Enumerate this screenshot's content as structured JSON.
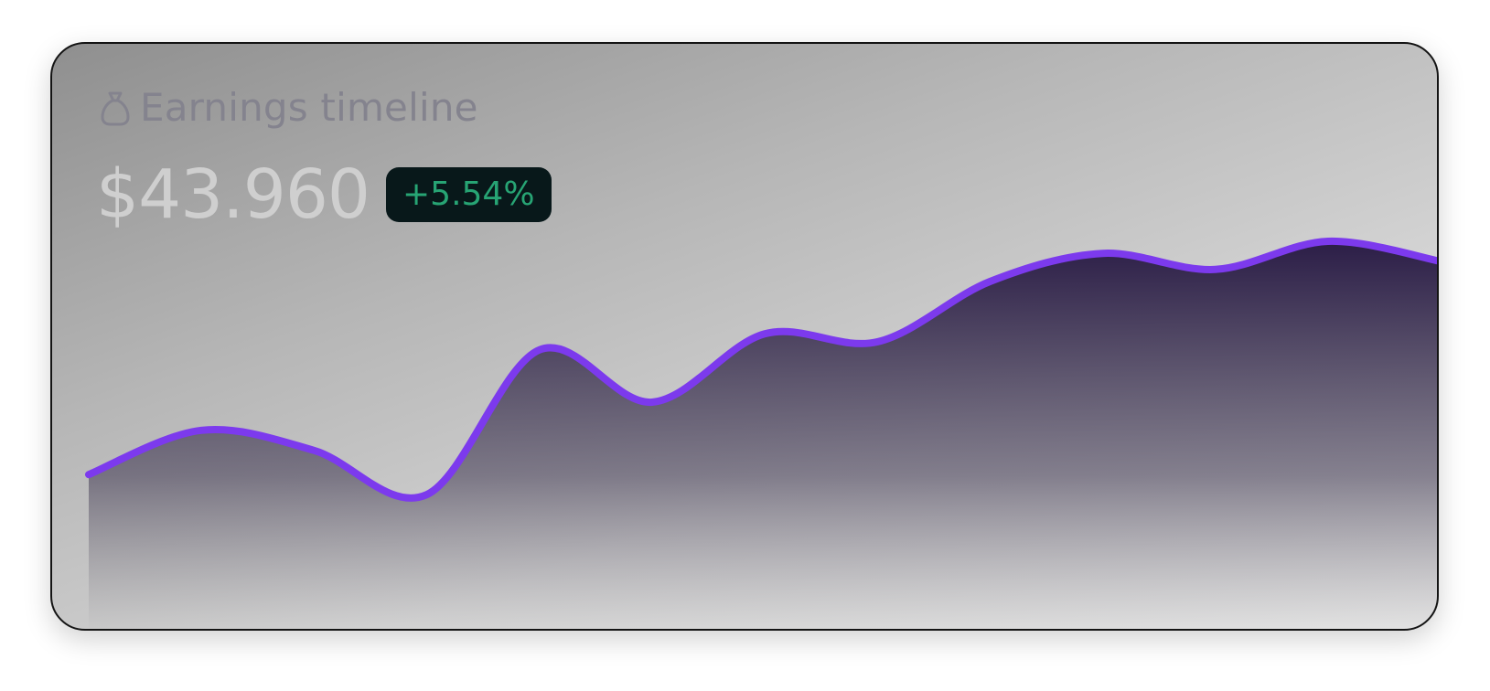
{
  "card": {
    "title": "Earnings timeline",
    "icon": "money-bag-icon",
    "amount": "$43.960",
    "change": "+5.54%"
  },
  "colors": {
    "line": "#7c3aed",
    "fill_top": "#2b1d47",
    "badge_bg": "#08181a",
    "badge_text": "#27a474",
    "title": "#84838e",
    "amount": "#cfcfcf"
  },
  "chart_data": {
    "type": "area",
    "title": "",
    "xlabel": "",
    "ylabel": "",
    "x": [
      0,
      1,
      2,
      3,
      4,
      5,
      6,
      7,
      8,
      9,
      10,
      11,
      12
    ],
    "values": [
      27,
      38,
      33,
      22,
      58,
      45,
      62,
      60,
      75,
      82,
      78,
      85,
      80
    ],
    "ylim": [
      0,
      100
    ],
    "grid": false,
    "legend": "none",
    "smooth": true
  }
}
